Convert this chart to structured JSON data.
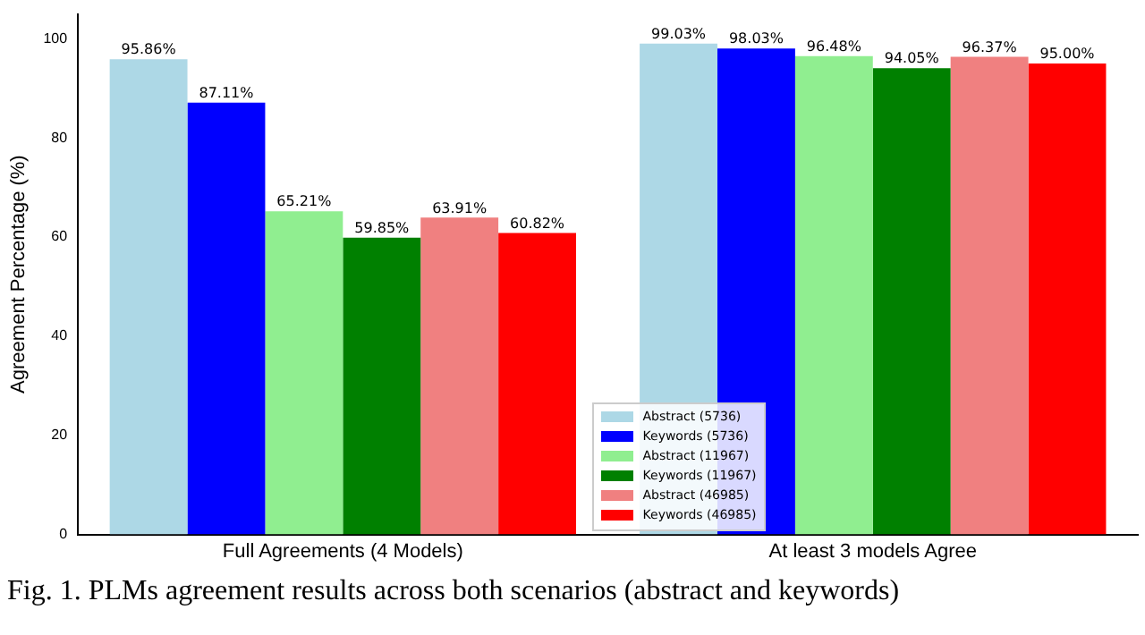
{
  "chart_data": {
    "type": "bar",
    "ylabel": "Agreement Percentage (%)",
    "categories": [
      "Full Agreements (4 Models)",
      "At least 3 models Agree"
    ],
    "series": [
      {
        "name": "Abstract (5736)",
        "color": "#add8e6",
        "values": [
          95.86,
          99.03
        ],
        "value_labels": [
          "95.86%",
          "99.03%"
        ]
      },
      {
        "name": "Keywords (5736)",
        "color": "#0000ff",
        "values": [
          87.11,
          98.03
        ],
        "value_labels": [
          "87.11%",
          "98.03%"
        ]
      },
      {
        "name": "Abstract (11967)",
        "color": "#90ee90",
        "values": [
          65.21,
          96.48
        ],
        "value_labels": [
          "65.21%",
          "96.48%"
        ]
      },
      {
        "name": "Keywords (11967)",
        "color": "#008000",
        "values": [
          59.85,
          94.05
        ],
        "value_labels": [
          "59.85%",
          "94.05%"
        ]
      },
      {
        "name": "Abstract (46985)",
        "color": "#f08080",
        "values": [
          63.91,
          96.37
        ],
        "value_labels": [
          "63.91%",
          "96.37%"
        ]
      },
      {
        "name": "Keywords (46985)",
        "color": "#ff0000",
        "values": [
          60.82,
          95.0
        ],
        "value_labels": [
          "60.82%",
          "95.00%"
        ]
      }
    ],
    "ylim": [
      0,
      105
    ],
    "yticks": [
      0,
      20,
      40,
      60,
      80,
      100
    ],
    "grid": false,
    "legend": "bottom",
    "annotations": [
      "Fig. 1. PLMs agreement results across both scenarios (abstract and keywords)"
    ]
  }
}
